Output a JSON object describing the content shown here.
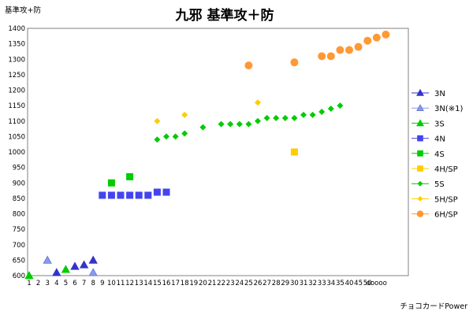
{
  "chart_data": {
    "type": "scatter",
    "title": "九邪 基準攻＋防",
    "ylabel": "基準攻+防",
    "footnote": "チョコカードPower",
    "ylim": [
      600,
      1400
    ],
    "ytick_step": 50,
    "x_labels": [
      "1",
      "2",
      "3",
      "4",
      "5",
      "6",
      "7",
      "8",
      "9",
      "10",
      "11",
      "12",
      "13",
      "14",
      "15",
      "16",
      "17",
      "18",
      "19",
      "20",
      "21",
      "22",
      "23",
      "24",
      "25",
      "26",
      "27",
      "28",
      "29",
      "30",
      "31",
      "32",
      "33",
      "34",
      "35",
      "40",
      "45",
      "50",
      "ooooo"
    ],
    "legend": [
      "3N",
      "3N(※1)",
      "3S",
      "4N",
      "4S",
      "4H/SP",
      "5S",
      "5H/SP",
      "6H/SP"
    ],
    "series": [
      {
        "name": "3N",
        "color": "#3333cc",
        "marker": "triangle",
        "points": [
          [
            4,
            610
          ],
          [
            6,
            630
          ],
          [
            7,
            635
          ],
          [
            8,
            650
          ]
        ]
      },
      {
        "name": "3N(※1)",
        "color": "#8899ee",
        "marker": "triangle",
        "points": [
          [
            3,
            650
          ],
          [
            8,
            610
          ]
        ]
      },
      {
        "name": "3S",
        "color": "#00cc00",
        "marker": "triangle",
        "points": [
          [
            1,
            600
          ],
          [
            5,
            620
          ]
        ]
      },
      {
        "name": "4N",
        "color": "#4444ee",
        "marker": "square",
        "points": [
          [
            9,
            860
          ],
          [
            10,
            860
          ],
          [
            11,
            860
          ],
          [
            12,
            860
          ],
          [
            13,
            860
          ],
          [
            14,
            860
          ],
          [
            15,
            870
          ],
          [
            16,
            870
          ]
        ]
      },
      {
        "name": "4S",
        "color": "#00cc00",
        "marker": "square",
        "points": [
          [
            10,
            900
          ],
          [
            12,
            920
          ]
        ]
      },
      {
        "name": "4H/SP",
        "color": "#ffcc00",
        "marker": "square",
        "points": [
          [
            30,
            1000
          ]
        ]
      },
      {
        "name": "5S",
        "color": "#00cc00",
        "marker": "diamond",
        "points": [
          [
            15,
            1040
          ],
          [
            16,
            1050
          ],
          [
            17,
            1050
          ],
          [
            18,
            1060
          ],
          [
            20,
            1080
          ],
          [
            22,
            1090
          ],
          [
            23,
            1090
          ],
          [
            24,
            1090
          ],
          [
            25,
            1090
          ],
          [
            26,
            1100
          ],
          [
            27,
            1110
          ],
          [
            28,
            1110
          ],
          [
            29,
            1110
          ],
          [
            30,
            1110
          ],
          [
            31,
            1120
          ],
          [
            32,
            1120
          ],
          [
            33,
            1130
          ],
          [
            34,
            1140
          ],
          [
            35,
            1150
          ]
        ]
      },
      {
        "name": "5H/SP",
        "color": "#ffcc00",
        "marker": "diamond",
        "points": [
          [
            15,
            1100
          ],
          [
            18,
            1120
          ],
          [
            26,
            1160
          ]
        ]
      },
      {
        "name": "6H/SP",
        "color": "#ff9933",
        "marker": "circle",
        "points": [
          [
            25,
            1280
          ],
          [
            30,
            1290
          ],
          [
            33,
            1310
          ],
          [
            34,
            1310
          ],
          [
            35,
            1330
          ],
          [
            36,
            1330
          ],
          [
            37,
            1340
          ],
          [
            38,
            1360
          ],
          [
            39,
            1370
          ],
          [
            40,
            1380
          ]
        ]
      }
    ]
  }
}
